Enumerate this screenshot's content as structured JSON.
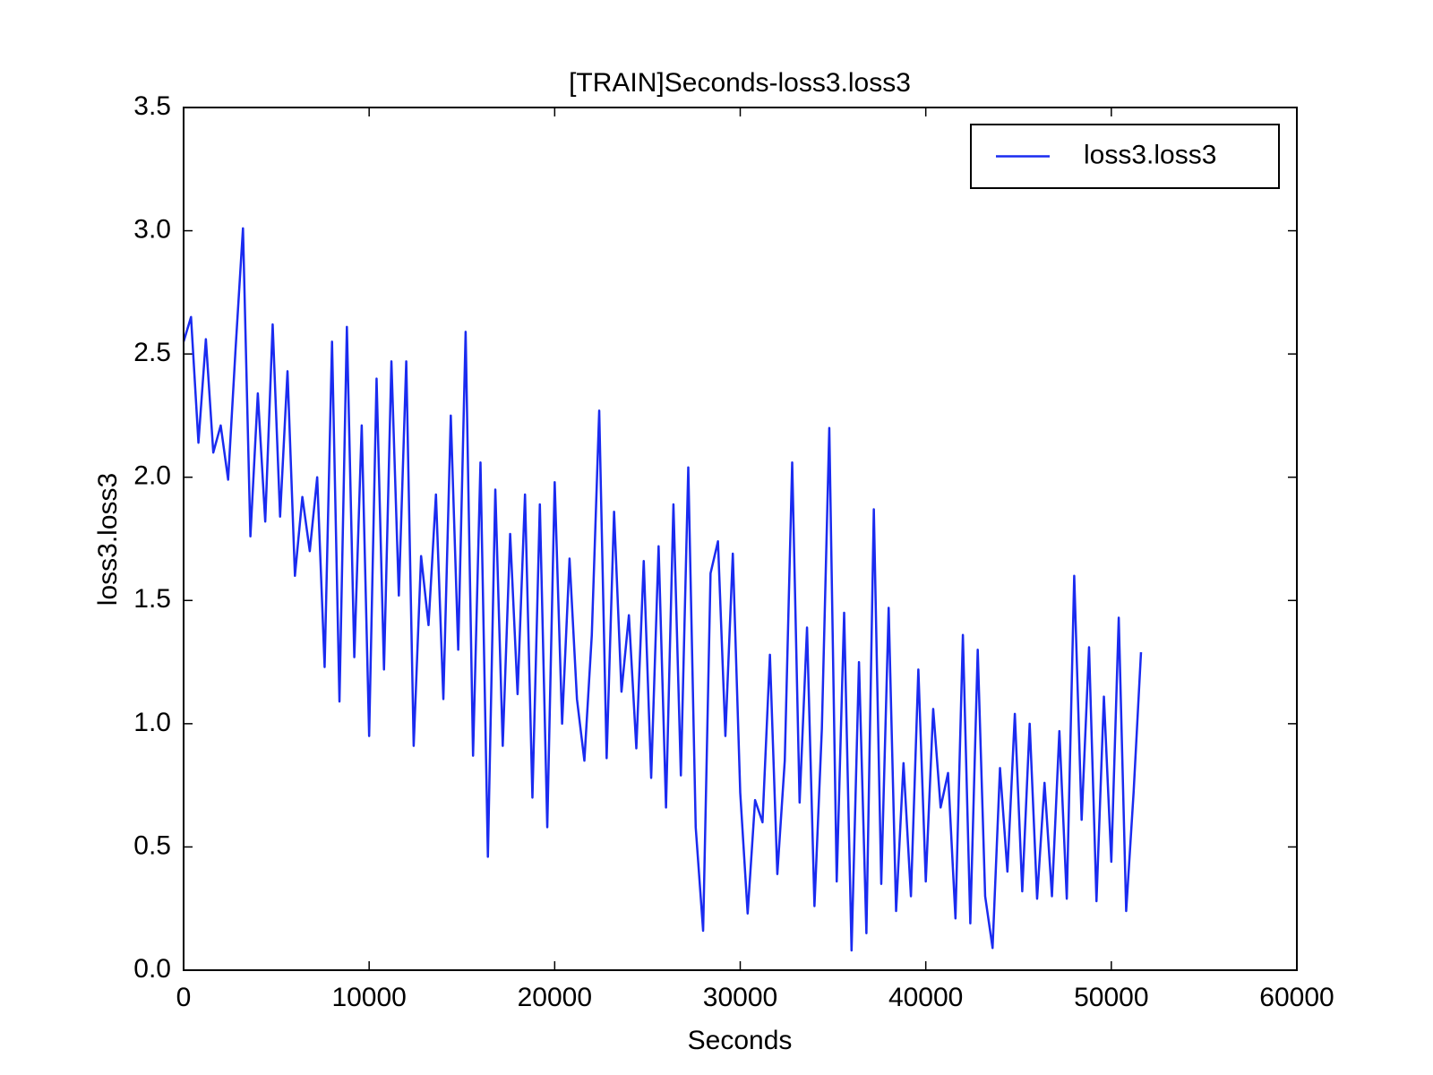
{
  "chart_data": {
    "type": "line",
    "title": "[TRAIN]Seconds-loss3.loss3",
    "x_label": "Seconds",
    "y_label": "loss3.loss3",
    "legend_position": "upper right",
    "xlim": [
      0,
      60000
    ],
    "xticks": [
      0,
      10000,
      20000,
      30000,
      40000,
      50000,
      60000
    ],
    "ylim": [
      0,
      3.5
    ],
    "yticks": [
      {
        "value": 0,
        "label": "0.0"
      },
      0.5,
      {
        "value": 1,
        "label": "1.0"
      },
      1.5,
      {
        "value": 2,
        "label": "2.0"
      },
      2.5,
      {
        "value": 3,
        "label": "3.0"
      },
      3.5
    ],
    "x": [
      0,
      400,
      800,
      1200,
      1600,
      2000,
      2400,
      2800,
      3200,
      3600,
      4000,
      4400,
      4800,
      5200,
      5600,
      6000,
      6400,
      6800,
      7200,
      7600,
      8000,
      8400,
      8800,
      9200,
      9600,
      10000,
      10400,
      10800,
      11200,
      11600,
      12000,
      12400,
      12800,
      13200,
      13600,
      14000,
      14400,
      14800,
      15200,
      15600,
      16000,
      16400,
      16800,
      17200,
      17600,
      18000,
      18400,
      18800,
      19200,
      19600,
      20000,
      20400,
      20800,
      21200,
      21600,
      22000,
      22400,
      22800,
      23200,
      23600,
      24000,
      24400,
      24800,
      25200,
      25600,
      26000,
      26400,
      26800,
      27200,
      27600,
      28000,
      28400,
      28800,
      29200,
      29600,
      30000,
      30400,
      30800,
      31200,
      31600,
      32000,
      32400,
      32800,
      33200,
      33600,
      34000,
      34400,
      34800,
      35200,
      35600,
      36000,
      36400,
      36800,
      37200,
      37600,
      38000,
      38400,
      38800,
      39200,
      39600,
      40000,
      40400,
      40800,
      41200,
      41600,
      42000,
      42400,
      42800,
      43200,
      43600,
      44000,
      44400,
      44800,
      45200,
      45600,
      46000,
      46400,
      46800,
      47200,
      47600,
      48000,
      48400,
      48800,
      49200,
      49600,
      50000,
      50400,
      50800,
      51200,
      51600
    ],
    "series": [
      {
        "name": "loss3.loss3",
        "color": "#1a2bf0",
        "values": [
          2.55,
          2.65,
          2.14,
          2.56,
          2.1,
          2.21,
          1.99,
          2.52,
          3.01,
          1.76,
          2.34,
          1.82,
          2.62,
          1.84,
          2.43,
          1.6,
          1.92,
          1.7,
          2.0,
          1.23,
          2.55,
          1.09,
          2.61,
          1.27,
          2.21,
          0.95,
          2.4,
          1.22,
          2.47,
          1.52,
          2.47,
          0.91,
          1.68,
          1.4,
          1.93,
          1.1,
          2.25,
          1.3,
          2.59,
          0.87,
          2.06,
          0.46,
          1.95,
          0.91,
          1.77,
          1.12,
          1.93,
          0.7,
          1.89,
          0.58,
          1.98,
          1.0,
          1.67,
          1.1,
          0.85,
          1.36,
          2.27,
          0.86,
          1.86,
          1.13,
          1.44,
          0.9,
          1.66,
          0.78,
          1.72,
          0.66,
          1.89,
          0.79,
          2.04,
          0.58,
          0.16,
          1.61,
          1.74,
          0.95,
          1.69,
          0.72,
          0.23,
          0.69,
          0.6,
          1.28,
          0.39,
          0.85,
          2.06,
          0.68,
          1.39,
          0.26,
          0.98,
          2.2,
          0.36,
          1.45,
          0.08,
          1.25,
          0.15,
          1.87,
          0.35,
          1.47,
          0.24,
          0.84,
          0.3,
          1.22,
          0.36,
          1.06,
          0.66,
          0.8,
          0.21,
          1.36,
          0.19,
          1.3,
          0.3,
          0.09,
          0.82,
          0.4,
          1.04,
          0.32,
          1.0,
          0.29,
          0.76,
          0.3,
          0.97,
          0.29,
          1.6,
          0.61,
          1.31,
          0.28,
          1.11,
          0.44,
          1.43,
          0.24,
          0.72,
          1.29
        ]
      }
    ]
  }
}
